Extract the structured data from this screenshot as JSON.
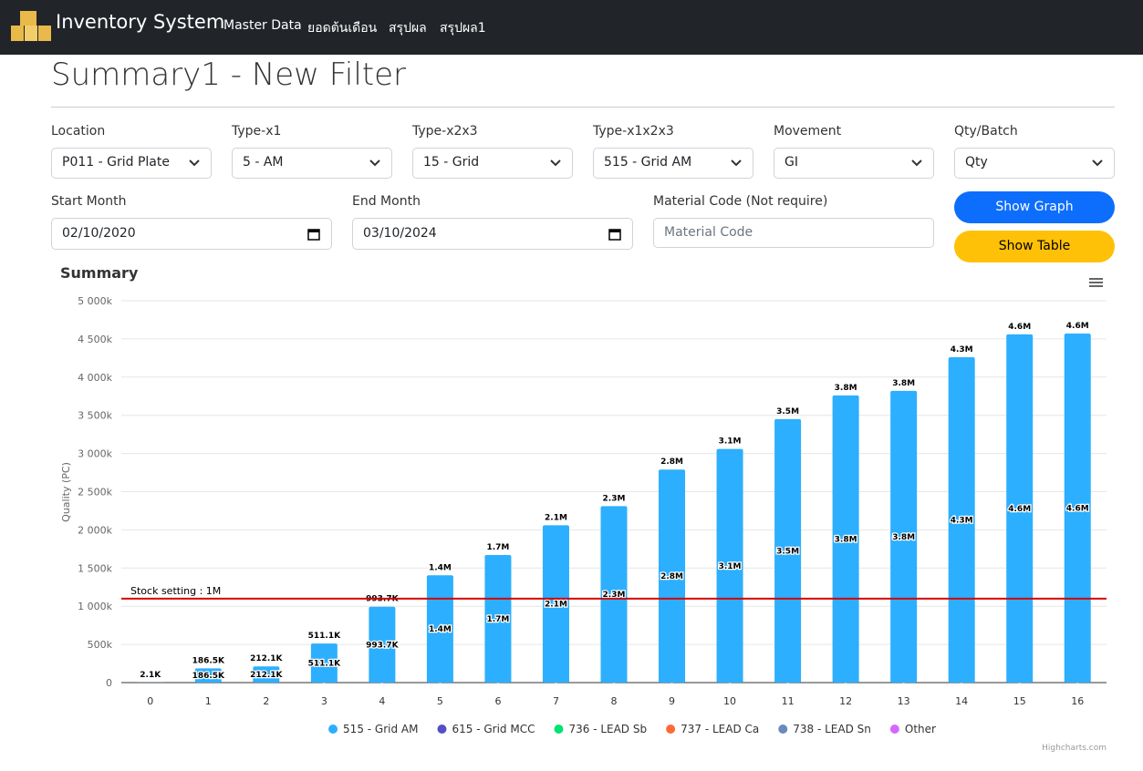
{
  "navbar": {
    "brand": "Inventory System",
    "links": [
      "Master Data",
      "ยอดต้นเดือน",
      "สรุปผล",
      "สรุปผล1"
    ]
  },
  "page_title": "Summary1 - New Filter",
  "filters": [
    {
      "label": "Location",
      "value": "P011 - Grid Plate"
    },
    {
      "label": "Type-x1",
      "value": "5 - AM"
    },
    {
      "label": "Type-x2x3",
      "value": "15 - Grid"
    },
    {
      "label": "Type-x1x2x3",
      "value": "515 - Grid AM"
    },
    {
      "label": "Movement",
      "value": "GI"
    },
    {
      "label": "Qty/Batch",
      "value": "Qty"
    }
  ],
  "date_filters": [
    {
      "label": "Start Month",
      "value": "02/10/2020"
    },
    {
      "label": "End Month",
      "value": "03/10/2024"
    }
  ],
  "material_code": {
    "label": "Material Code (Not require)",
    "placeholder": "Material Code"
  },
  "buttons": {
    "show_graph": "Show Graph",
    "show_table": "Show Table"
  },
  "chart_data": {
    "type": "bar",
    "title": "Summary",
    "y_label": "Quality (PC)",
    "credit": "Highcharts.com",
    "categories": [
      "0",
      "1",
      "2",
      "3",
      "4",
      "5",
      "6",
      "7",
      "8",
      "9",
      "10",
      "11",
      "12",
      "13",
      "14",
      "15",
      "16"
    ],
    "series": [
      {
        "name": "515 - Grid AM",
        "color": "#2caffe",
        "values": [
          2100,
          186500,
          212100,
          511100,
          993700,
          1405000,
          1670000,
          2060000,
          2310000,
          2790000,
          3060000,
          3450000,
          3760000,
          3820000,
          4260000,
          4560000,
          4570000
        ],
        "value_labels": [
          "2.1K",
          "186.5K",
          "212.1K",
          "511.1K",
          "993.7K",
          "1.4M",
          "1.7M",
          "2.1M",
          "2.3M",
          "2.8M",
          "3.1M",
          "3.5M",
          "3.8M",
          "3.8M",
          "4.3M",
          "4.6M",
          "4.6M"
        ]
      },
      {
        "name": "615 - Grid MCC",
        "color": "#544fc5",
        "values": [
          null,
          null,
          null,
          0,
          0,
          0,
          0,
          0,
          0,
          0,
          0,
          0,
          0,
          0,
          0,
          0,
          0
        ]
      },
      {
        "name": "736 - LEAD Sb",
        "color": "#00e272"
      },
      {
        "name": "737 - LEAD Ca",
        "color": "#fe6a35"
      },
      {
        "name": "738 - LEAD Sn",
        "color": "#6b8abc"
      },
      {
        "name": "Other",
        "color": "#d568fb"
      }
    ],
    "ylim": [
      0,
      5000000
    ],
    "yticks": [
      0,
      {
        "value": 500000,
        "label": "500k"
      },
      {
        "value": 1000000,
        "label": "1 000k"
      },
      {
        "value": 1500000,
        "label": "1 500k"
      },
      {
        "value": 2000000,
        "label": "2 000k"
      },
      {
        "value": 2500000,
        "label": "2 500k"
      },
      {
        "value": 3000000,
        "label": "3 000k"
      },
      {
        "value": 3500000,
        "label": "3 500k"
      },
      {
        "value": 4000000,
        "label": "4 000k"
      },
      {
        "value": 4500000,
        "label": "4 500k"
      },
      {
        "value": 5000000,
        "label": "5 000k"
      }
    ],
    "grid": true,
    "plot_line": {
      "value": 1100000,
      "label": "Stock setting : 1M",
      "color": "#d40000"
    }
  }
}
